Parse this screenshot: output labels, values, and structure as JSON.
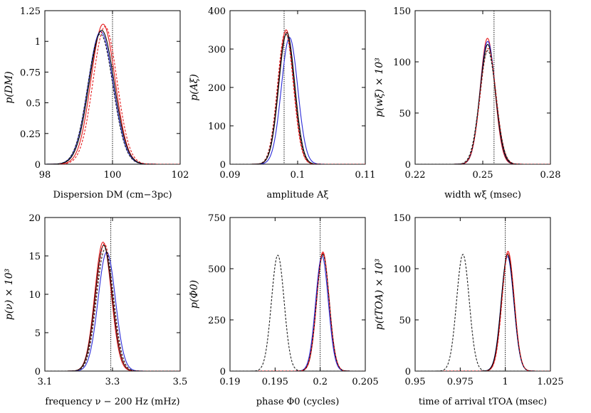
{
  "figure": {
    "background": "#ffffff"
  },
  "colors": {
    "red": "#e41a1c",
    "blue": "#2b2bd9",
    "black": "#000000",
    "dashed_black": "#222222"
  },
  "chart_data": [
    {
      "id": "dm",
      "type": "line",
      "xlabel": "Dispersion DM (cm−3pc)",
      "ylabel": "p(DM)",
      "xlim": [
        98,
        102
      ],
      "ylim": [
        0,
        1.25
      ],
      "xticks": [
        98,
        100,
        102
      ],
      "xtick_labels": [
        "98",
        "100",
        "102"
      ],
      "yticks": [
        0,
        0.25,
        0.5,
        0.75,
        1,
        1.25
      ],
      "ytick_labels": [
        "0",
        "0.25",
        "0.5",
        "0.75",
        "1",
        "1.25"
      ],
      "true_value": 100,
      "series": [
        {
          "name": "red",
          "style": "solid",
          "color": "#e41a1c",
          "peaks": [
            {
              "mu": 99.72,
              "sigma": 0.355,
              "amp": 1.14
            }
          ]
        },
        {
          "name": "blue",
          "style": "solid",
          "color": "#2b2bd9",
          "peaks": [
            {
              "mu": 99.65,
              "sigma": 0.37,
              "amp": 1.08
            }
          ]
        },
        {
          "name": "dark",
          "style": "solid",
          "color": "#000000",
          "peaks": [
            {
              "mu": 99.68,
              "sigma": 0.37,
              "amp": 1.09
            }
          ]
        },
        {
          "name": "red-dashed",
          "style": "dashed",
          "color": "#e41a1c",
          "peaks": [
            {
              "mu": 99.78,
              "sigma": 0.355,
              "amp": 1.12
            }
          ]
        },
        {
          "name": "black-dashed",
          "style": "dashed",
          "color": "#222222",
          "peaks": [
            {
              "mu": 99.64,
              "sigma": 0.37,
              "amp": 1.06
            }
          ]
        }
      ]
    },
    {
      "id": "amp",
      "type": "line",
      "xlabel": "amplitude Aξ",
      "ylabel": "p(Aξ)",
      "xlim": [
        0.09,
        0.11
      ],
      "ylim": [
        0,
        400
      ],
      "xticks": [
        0.09,
        0.1,
        0.11
      ],
      "xtick_labels": [
        "0.09",
        "0.1",
        "0.11"
      ],
      "yticks": [
        0,
        100,
        200,
        300,
        400
      ],
      "ytick_labels": [
        "0",
        "100",
        "200",
        "300",
        "400"
      ],
      "true_value": 0.098,
      "series": [
        {
          "name": "red",
          "style": "solid",
          "color": "#e41a1c",
          "peaks": [
            {
              "mu": 0.0983,
              "sigma": 0.00114,
              "amp": 350
            }
          ]
        },
        {
          "name": "blue",
          "style": "solid",
          "color": "#2b2bd9",
          "peaks": [
            {
              "mu": 0.0988,
              "sigma": 0.00121,
              "amp": 330
            }
          ]
        },
        {
          "name": "dark",
          "style": "solid",
          "color": "#000000",
          "peaks": [
            {
              "mu": 0.0984,
              "sigma": 0.00118,
              "amp": 343
            }
          ]
        },
        {
          "name": "red-dashed",
          "style": "dashed",
          "color": "#e41a1c",
          "peaks": [
            {
              "mu": 0.0982,
              "sigma": 0.00116,
              "amp": 345
            }
          ]
        },
        {
          "name": "black-dashed",
          "style": "dashed",
          "color": "#222222",
          "peaks": [
            {
              "mu": 0.0983,
              "sigma": 0.00118,
              "amp": 338
            }
          ]
        }
      ]
    },
    {
      "id": "width",
      "type": "line",
      "xlabel": "width wξ (msec)",
      "ylabel": "p(wξ) × 10³",
      "xlim": [
        0.22,
        0.28
      ],
      "ylim": [
        0,
        150
      ],
      "xticks": [
        0.22,
        0.25,
        0.28
      ],
      "xtick_labels": [
        "0.22",
        "0.25",
        "0.28"
      ],
      "yticks": [
        0,
        50,
        100,
        150
      ],
      "ytick_labels": [
        "0",
        "50",
        "100",
        "150"
      ],
      "true_value": 0.255,
      "series": [
        {
          "name": "red",
          "style": "solid",
          "color": "#e41a1c",
          "peaks": [
            {
              "mu": 0.2521,
              "sigma": 0.00325,
              "amp": 123
            }
          ]
        },
        {
          "name": "blue",
          "style": "solid",
          "color": "#2b2bd9",
          "peaks": [
            {
              "mu": 0.2522,
              "sigma": 0.00335,
              "amp": 120
            }
          ]
        },
        {
          "name": "dark",
          "style": "solid",
          "color": "#000000",
          "peaks": [
            {
              "mu": 0.2522,
              "sigma": 0.0034,
              "amp": 117
            }
          ]
        },
        {
          "name": "red-dashed",
          "style": "dashed",
          "color": "#e41a1c",
          "peaks": [
            {
              "mu": 0.2524,
              "sigma": 0.0035,
              "amp": 113
            }
          ]
        },
        {
          "name": "black-dashed",
          "style": "dashed",
          "color": "#222222",
          "peaks": [
            {
              "mu": 0.2522,
              "sigma": 0.0036,
              "amp": 111
            }
          ]
        }
      ]
    },
    {
      "id": "freq",
      "type": "line",
      "xlabel": "frequency ν − 200 Hz (mHz)",
      "ylabel": "p(ν) × 10³",
      "xlim": [
        3.1,
        3.5
      ],
      "ylim": [
        0,
        20
      ],
      "xticks": [
        3.1,
        3.3,
        3.5
      ],
      "xtick_labels": [
        "3.1",
        "3.3",
        "3.5"
      ],
      "yticks": [
        0,
        5,
        10,
        15,
        20
      ],
      "ytick_labels": [
        "0",
        "5",
        "10",
        "15",
        "20"
      ],
      "true_value": 3.295,
      "series": [
        {
          "name": "red",
          "style": "solid",
          "color": "#e41a1c",
          "peaks": [
            {
              "mu": 3.272,
              "sigma": 0.0243,
              "amp": 16.8
            }
          ]
        },
        {
          "name": "blue",
          "style": "solid",
          "color": "#2b2bd9",
          "peaks": [
            {
              "mu": 3.283,
              "sigma": 0.0255,
              "amp": 15.5
            }
          ]
        },
        {
          "name": "dark",
          "style": "solid",
          "color": "#000000",
          "peaks": [
            {
              "mu": 3.274,
              "sigma": 0.0248,
              "amp": 16.4
            }
          ]
        },
        {
          "name": "red-dashed",
          "style": "dashed",
          "color": "#e41a1c",
          "peaks": [
            {
              "mu": 3.276,
              "sigma": 0.0245,
              "amp": 16.6
            }
          ]
        },
        {
          "name": "black-dashed",
          "style": "dashed",
          "color": "#222222",
          "peaks": [
            {
              "mu": 3.278,
              "sigma": 0.0252,
              "amp": 15.9
            }
          ]
        }
      ]
    },
    {
      "id": "phase",
      "type": "line",
      "xlabel": "phase Φ0 (cycles)",
      "ylabel": "p(Φ0)",
      "xlim": [
        0.19,
        0.205
      ],
      "ylim": [
        0,
        750
      ],
      "xticks": [
        0.19,
        0.195,
        0.2,
        0.205
      ],
      "xtick_labels": [
        "0.19",
        "0.195",
        "0.2",
        "0.205"
      ],
      "yticks": [
        0,
        250,
        500,
        750
      ],
      "ytick_labels": [
        "0",
        "250",
        "500",
        "750"
      ],
      "true_value": 0.2,
      "series": [
        {
          "name": "red",
          "style": "solid",
          "color": "#e41a1c",
          "peaks": [
            {
              "mu": 0.2003,
              "sigma": 0.00068,
              "amp": 582
            }
          ]
        },
        {
          "name": "blue",
          "style": "solid",
          "color": "#2b2bd9",
          "peaks": [
            {
              "mu": 0.2002,
              "sigma": 0.0007,
              "amp": 562
            }
          ]
        },
        {
          "name": "dark",
          "style": "solid",
          "color": "#000000",
          "peaks": [
            {
              "mu": 0.2003,
              "sigma": 0.0007,
              "amp": 570
            }
          ]
        },
        {
          "name": "red-dashed",
          "style": "dashed",
          "color": "#e41a1c",
          "peaks": [
            {
              "mu": 0.2003,
              "sigma": 0.0007,
              "amp": 575
            }
          ]
        },
        {
          "name": "black-dashed",
          "style": "dashed",
          "color": "#222222",
          "peaks": [
            {
              "mu": 0.1953,
              "sigma": 0.0007,
              "amp": 566
            }
          ]
        }
      ]
    },
    {
      "id": "toa",
      "type": "line",
      "xlabel": "time of arrival tTOA (msec)",
      "ylabel": "p(tTOA) × 10³",
      "xlim": [
        0.95,
        1.025
      ],
      "ylim": [
        0,
        150
      ],
      "xticks": [
        0.95,
        0.975,
        1,
        1.025
      ],
      "xtick_labels": [
        "0.95",
        "0.975",
        "1",
        "1.025"
      ],
      "yticks": [
        0,
        50,
        100,
        150
      ],
      "ytick_labels": [
        "0",
        "50",
        "100",
        "150"
      ],
      "true_value": 1.0,
      "series": [
        {
          "name": "red",
          "style": "solid",
          "color": "#e41a1c",
          "peaks": [
            {
              "mu": 1.0015,
              "sigma": 0.0034,
              "amp": 117
            }
          ]
        },
        {
          "name": "blue",
          "style": "solid",
          "color": "#2b2bd9",
          "peaks": [
            {
              "mu": 1.0012,
              "sigma": 0.0035,
              "amp": 112
            }
          ]
        },
        {
          "name": "dark",
          "style": "solid",
          "color": "#000000",
          "peaks": [
            {
              "mu": 1.0013,
              "sigma": 0.0035,
              "amp": 114
            }
          ]
        },
        {
          "name": "red-dashed",
          "style": "dashed",
          "color": "#e41a1c",
          "peaks": [
            {
              "mu": 1.0016,
              "sigma": 0.0034,
              "amp": 115
            }
          ]
        },
        {
          "name": "black-dashed",
          "style": "dashed",
          "color": "#222222",
          "peaks": [
            {
              "mu": 0.9765,
              "sigma": 0.0035,
              "amp": 114
            }
          ]
        }
      ]
    }
  ]
}
